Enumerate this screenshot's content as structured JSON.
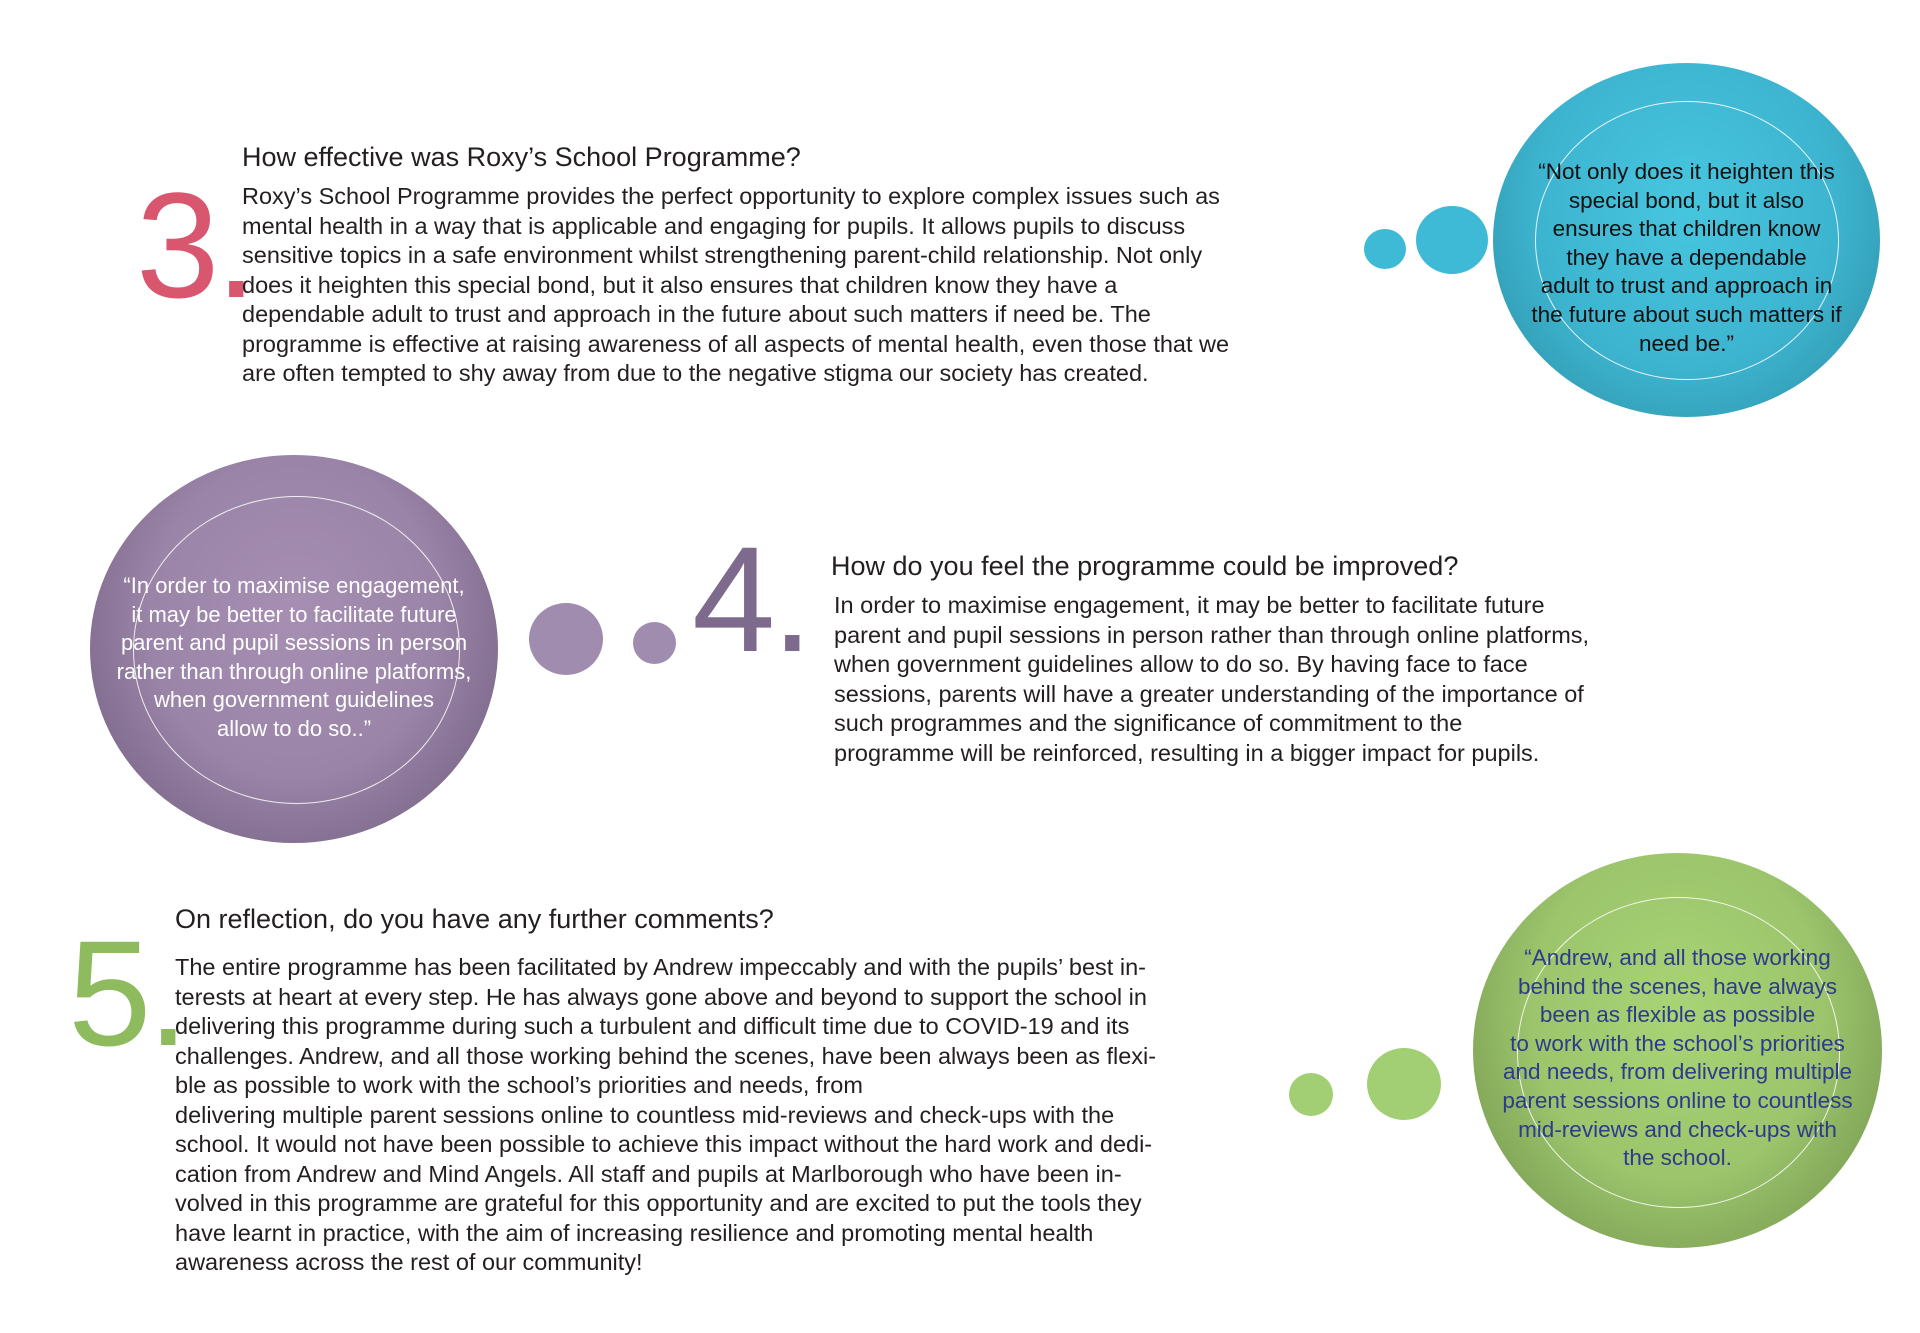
{
  "colors": {
    "pink": "#d9566f",
    "purple": "#7d6a8d",
    "green": "#8fbb5f",
    "teal": "#3fbad6",
    "quote_green_text": "#2e3a8c"
  },
  "section3": {
    "number": "3.",
    "heading": "How effective was Roxy’s School Programme?",
    "body_lines": [
      "Roxy’s School Programme provides the perfect opportunity to explore complex issues such as",
      "mental health in a way that is applicable and engaging for pupils. It allows pupils to discuss",
      "sensitive topics in a safe environment whilst strengthening parent-child relationship. Not only",
      "does it heighten this special bond, but it also ensures that children know they have a",
      "dependable adult to trust and approach in the future about such matters if need be. The",
      "programme is effective at raising awareness of all aspects of mental health, even those that we",
      "are often tempted to shy away from due to the negative stigma our society has created."
    ],
    "quote_lines": [
      "“Not only does it heighten this",
      "special bond, but it also",
      "ensures that children know",
      "they have a dependable",
      "adult to trust and approach in",
      "the future about such matters if",
      "need be.”"
    ]
  },
  "section4": {
    "number": "4.",
    "heading": "How do you feel the programme could be improved?",
    "body_lines": [
      "In order to maximise engagement, it may be better to facilitate future",
      "parent and pupil sessions in person rather than through online platforms,",
      "when government guidelines allow to do so. By having face to face",
      "sessions, parents will have a greater understanding of the importance of",
      "such programmes and the significance of commitment to the",
      "programme will be reinforced, resulting in a bigger impact for pupils."
    ],
    "quote_lines": [
      "“In order to maximise engagement,",
      "it may be better to facilitate future",
      "parent and pupil sessions in person",
      "rather than through online platforms,",
      "when government guidelines",
      "allow to do so..”"
    ]
  },
  "section5": {
    "number": "5.",
    "heading": "On reflection, do you have any further comments?",
    "body_lines": [
      "The entire programme has been facilitated by Andrew impeccably and with the pupils’ best in-",
      "terests at heart at every step. He has always gone above and beyond to support the school in",
      "delivering this programme during such a turbulent and difficult time due to COVID-19 and its",
      "challenges. Andrew, and all those working behind the scenes, have been always been as flexi-",
      "ble as possible to work with the school’s priorities and needs, from",
      "delivering multiple parent sessions online to countless mid-reviews and check-ups with the",
      "school. It would not have been possible to achieve this impact without the hard work and dedi-",
      "cation from Andrew and Mind Angels. All staff and pupils at Marlborough who have been in-",
      "volved in this programme are grateful for this opportunity and are excited to put the tools they",
      "have learnt in practice, with the aim of increasing resilience and promoting mental health",
      "awareness across the rest of our community!"
    ],
    "quote_lines": [
      "“Andrew, and all those working",
      "behind the scenes, have always",
      "been as flexible as possible",
      "to work with the school’s priorities",
      "and needs, from delivering multiple",
      "parent sessions online to countless",
      "mid-reviews and check-ups with",
      "the school."
    ]
  }
}
